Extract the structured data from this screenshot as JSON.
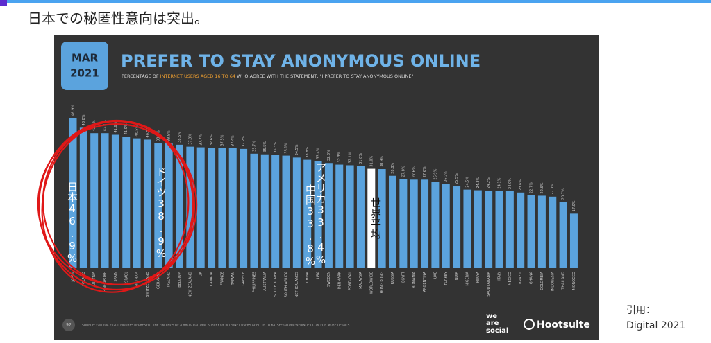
{
  "slide": {
    "heading": "日本での秘匿性意向は突出。",
    "citation": [
      "引用：",
      "Digital 2021"
    ]
  },
  "chart_data": {
    "type": "bar",
    "badge": [
      "MAR",
      "2021"
    ],
    "title": "PREFER TO STAY ANONYMOUS ONLINE",
    "subtitle": [
      "PERCENTAGE OF ",
      "INTERNET USERS AGED 16 TO 64",
      " WHO AGREE WITH THE STATEMENT, \"I PREFER TO STAY ANONYMOUS ONLINE\""
    ],
    "categories": [
      "JAPAN",
      "POLAND",
      "AUSTRIA",
      "SINGAPORE",
      "SPAIN",
      "ISRAEL",
      "VIETNAM",
      "SWITZERLAND",
      "GERMANY",
      "IRELAND",
      "BELGIUM",
      "NEW ZEALAND",
      "UK",
      "CANADA",
      "FRANCE",
      "TAIWAN",
      "GREECE",
      "PHILIPPINES",
      "AUSTRALIA",
      "SOUTH KOREA",
      "SOUTH AFRICA",
      "NETHERLANDS",
      "CHINA",
      "USA",
      "SWEDEN",
      "DENMARK",
      "PORTUGAL",
      "MALAYSIA",
      "WORLDWIDE",
      "HONG KONG",
      "RUSSIA",
      "EGYPT",
      "ROMANIA",
      "ARGENTINA",
      "UAE",
      "TURKEY",
      "INDIA",
      "NIGERIA",
      "KENYA",
      "SAUDI ARABIA",
      "ITALY",
      "MEXICO",
      "BRAZIL",
      "GHANA",
      "COLOMBIA",
      "INDONESIA",
      "THAILAND",
      "MOROCCO"
    ],
    "values": [
      46.9,
      43.8,
      42.1,
      42.1,
      41.6,
      41.0,
      40.5,
      40.1,
      38.9,
      38.9,
      38.5,
      37.9,
      37.7,
      37.6,
      37.5,
      37.4,
      37.2,
      35.7,
      35.5,
      35.3,
      35.1,
      34.5,
      33.8,
      33.4,
      32.8,
      32.3,
      32.1,
      31.8,
      31.0,
      30.9,
      28.8,
      27.8,
      27.6,
      27.6,
      26.9,
      26.2,
      25.5,
      24.5,
      24.3,
      24.2,
      24.1,
      24.0,
      23.6,
      22.7,
      22.6,
      22.3,
      20.7,
      17.0
    ],
    "value_labels": [
      "46.9%",
      "43.8%",
      "42.1%",
      "42.1%",
      "41.6%",
      "41.0%",
      "40.5%",
      "40.1%",
      "38.9%",
      "38.9%",
      "38.5%",
      "37.9%",
      "37.7%",
      "37.6%",
      "37.5%",
      "37.4%",
      "37.2%",
      "35.7%",
      "35.5%",
      "35.3%",
      "35.1%",
      "34.5%",
      "33.8%",
      "33.4%",
      "32.8%",
      "32.3%",
      "32.1%",
      "31.8%",
      "31.0%",
      "30.9%",
      "28.8%",
      "27.8%",
      "27.6%",
      "27.6%",
      "26.9%",
      "26.2%",
      "25.5%",
      "24.5%",
      "24.3%",
      "24.2%",
      "24.1%",
      "24.0%",
      "23.6%",
      "22.7%",
      "22.6%",
      "22.3%",
      "20.7%",
      "17.0%"
    ],
    "colors": [
      "#5ba3dd",
      "#5ba3dd",
      "#5ba3dd",
      "#5ba3dd",
      "#5ba3dd",
      "#5ba3dd",
      "#5ba3dd",
      "#5ba3dd",
      "#5ba3dd",
      "#5ba3dd",
      "#5ba3dd",
      "#5ba3dd",
      "#5ba3dd",
      "#5ba3dd",
      "#5ba3dd",
      "#5ba3dd",
      "#5ba3dd",
      "#5ba3dd",
      "#5ba3dd",
      "#5ba3dd",
      "#5ba3dd",
      "#5ba3dd",
      "#5ba3dd",
      "#5ba3dd",
      "#5ba3dd",
      "#5ba3dd",
      "#5ba3dd",
      "#5ba3dd",
      "#ffffff",
      "#5ba3dd",
      "#5ba3dd",
      "#5ba3dd",
      "#5ba3dd",
      "#5ba3dd",
      "#5ba3dd",
      "#5ba3dd",
      "#5ba3dd",
      "#5ba3dd",
      "#5ba3dd",
      "#5ba3dd",
      "#5ba3dd",
      "#5ba3dd",
      "#5ba3dd",
      "#5ba3dd",
      "#5ba3dd",
      "#5ba3dd",
      "#5ba3dd",
      "#5ba3dd"
    ],
    "annotations": [
      "日本46.9%",
      "ドイツ38.9%",
      "中国33.8%",
      "アメリカ33.4%",
      "世界平均"
    ],
    "source": "SOURCE: GWI (Q4 2020). FIGURES REPRESENT THE FINDINGS OF A BROAD GLOBAL SURVEY OF INTERNET USERS AGED 16 TO 64. SEE GLOBALWEBINDEX.COM FOR MORE DETAILS.",
    "page_number": "92",
    "logos": [
      "we",
      "are",
      "social",
      "Hootsuite"
    ]
  }
}
